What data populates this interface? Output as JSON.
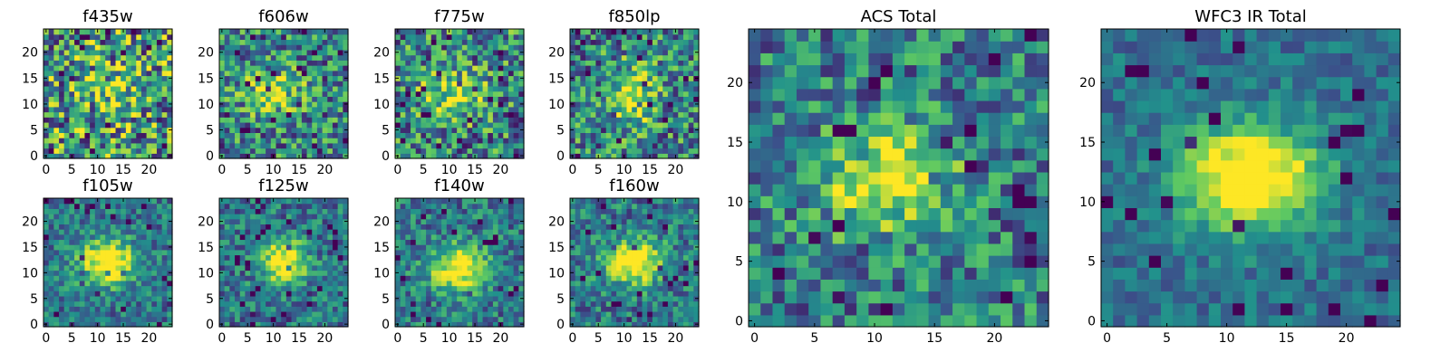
{
  "chart_data": [
    {
      "type": "heatmap",
      "title": "f435w",
      "center": [
        12,
        13
      ],
      "sigma": [
        5,
        4
      ],
      "amp": 0.15,
      "noise": 0.95,
      "seed": 11,
      "xticks": [
        "0",
        "5",
        "10",
        "15",
        "20"
      ],
      "yticks": [
        "0",
        "5",
        "10",
        "15",
        "20"
      ],
      "xlim": [
        0,
        24
      ],
      "ylim": [
        0,
        24
      ]
    },
    {
      "type": "heatmap",
      "title": "f606w",
      "center": [
        10,
        12
      ],
      "sigma": [
        4,
        3
      ],
      "amp": 0.55,
      "noise": 0.75,
      "seed": 23,
      "xticks": [
        "0",
        "5",
        "10",
        "15",
        "20"
      ],
      "yticks": [
        "0",
        "5",
        "10",
        "15",
        "20"
      ],
      "xlim": [
        0,
        24
      ],
      "ylim": [
        0,
        24
      ]
    },
    {
      "type": "heatmap",
      "title": "f775w",
      "center": [
        11,
        12
      ],
      "sigma": [
        4,
        3
      ],
      "amp": 0.45,
      "noise": 0.8,
      "seed": 37,
      "xticks": [
        "0",
        "5",
        "10",
        "15",
        "20"
      ],
      "yticks": [
        "0",
        "5",
        "10",
        "15",
        "20"
      ],
      "xlim": [
        0,
        24
      ],
      "ylim": [
        0,
        24
      ]
    },
    {
      "type": "heatmap",
      "title": "f850lp",
      "center": [
        12,
        12
      ],
      "sigma": [
        3,
        4
      ],
      "amp": 0.5,
      "noise": 0.75,
      "seed": 41,
      "xticks": [
        "0",
        "5",
        "10",
        "15",
        "20"
      ],
      "yticks": [
        "0",
        "5",
        "10",
        "15",
        "20"
      ],
      "xlim": [
        0,
        24
      ],
      "ylim": [
        0,
        24
      ]
    },
    {
      "type": "heatmap",
      "title": "f105w",
      "center": [
        12,
        12
      ],
      "sigma": [
        4,
        3
      ],
      "amp": 0.75,
      "noise": 0.45,
      "seed": 53,
      "xticks": [
        "0",
        "5",
        "10",
        "15",
        "20"
      ],
      "yticks": [
        "0",
        "5",
        "10",
        "15",
        "20"
      ],
      "xlim": [
        0,
        24
      ],
      "ylim": [
        0,
        24
      ]
    },
    {
      "type": "heatmap",
      "title": "f125w",
      "center": [
        12,
        12
      ],
      "sigma": [
        3,
        3
      ],
      "amp": 0.75,
      "noise": 0.5,
      "seed": 67,
      "xticks": [
        "0",
        "5",
        "10",
        "15",
        "20"
      ],
      "yticks": [
        "0",
        "5",
        "10",
        "15",
        "20"
      ],
      "xlim": [
        0,
        24
      ],
      "ylim": [
        0,
        24
      ]
    },
    {
      "type": "heatmap",
      "title": "f140w",
      "center": [
        12,
        11
      ],
      "sigma": [
        4,
        3
      ],
      "amp": 0.7,
      "noise": 0.5,
      "seed": 71,
      "xticks": [
        "0",
        "5",
        "10",
        "15",
        "20"
      ],
      "yticks": [
        "0",
        "5",
        "10",
        "15",
        "20"
      ],
      "xlim": [
        0,
        24
      ],
      "ylim": [
        0,
        24
      ]
    },
    {
      "type": "heatmap",
      "title": "f160w",
      "center": [
        12,
        12
      ],
      "sigma": [
        4,
        3
      ],
      "amp": 0.7,
      "noise": 0.5,
      "seed": 83,
      "xticks": [
        "0",
        "5",
        "10",
        "15",
        "20"
      ],
      "yticks": [
        "0",
        "5",
        "10",
        "15",
        "20"
      ],
      "xlim": [
        0,
        24
      ],
      "ylim": [
        0,
        24
      ]
    },
    {
      "type": "heatmap",
      "title": "ACS Total",
      "center": [
        11,
        12
      ],
      "sigma": [
        4,
        3
      ],
      "amp": 0.6,
      "noise": 0.6,
      "seed": 97,
      "xticks": [
        "0",
        "5",
        "10",
        "15",
        "20"
      ],
      "yticks": [
        "0",
        "5",
        "10",
        "15",
        "20"
      ],
      "xlim": [
        0,
        24
      ],
      "ylim": [
        0,
        24
      ]
    },
    {
      "type": "heatmap",
      "title": "WFC3 IR Total",
      "center": [
        12,
        12
      ],
      "sigma": [
        4,
        3
      ],
      "amp": 0.85,
      "noise": 0.3,
      "seed": 101,
      "xticks": [
        "0",
        "5",
        "10",
        "15",
        "20"
      ],
      "yticks": [
        "0",
        "5",
        "10",
        "15",
        "20"
      ],
      "xlim": [
        0,
        24
      ],
      "ylim": [
        0,
        24
      ]
    }
  ],
  "colormap": [
    "#440154",
    "#3b528b",
    "#21918c",
    "#5ec962",
    "#fde725"
  ]
}
